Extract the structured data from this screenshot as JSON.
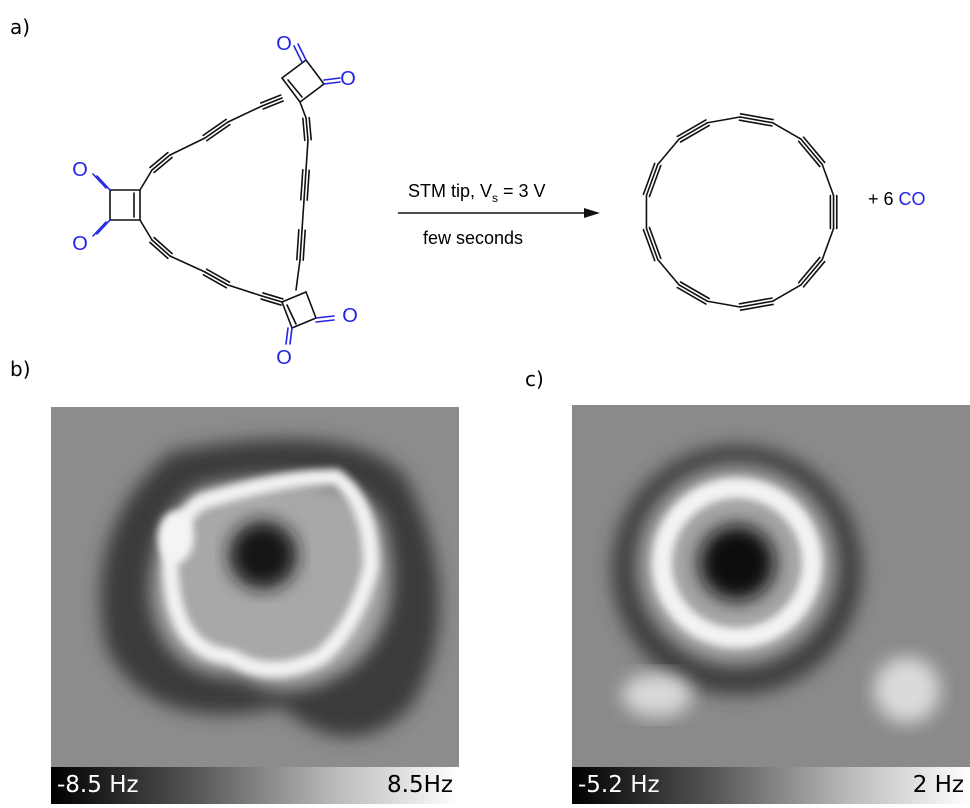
{
  "panels": {
    "a": {
      "label": "a)"
    },
    "b": {
      "label": "b)"
    },
    "c": {
      "label": "c)"
    }
  },
  "scheme": {
    "oxygen_symbol": "O",
    "arrow_top_text_main": "STM tip, V",
    "arrow_top_text_sub": "s",
    "arrow_top_text_tail": " = 3 V",
    "arrow_bottom_text": "few seconds",
    "byproduct_prefix": "+ 6 ",
    "byproduct_molecule": "CO"
  },
  "colorbars": {
    "b": {
      "min_label": "-8.5 Hz",
      "max_label": "8.5Hz"
    },
    "c": {
      "min_label": "-5.2 Hz",
      "max_label": "2 Hz"
    }
  },
  "colors": {
    "oxygen_blue": "#2323e6",
    "bond_black": "#111111"
  }
}
